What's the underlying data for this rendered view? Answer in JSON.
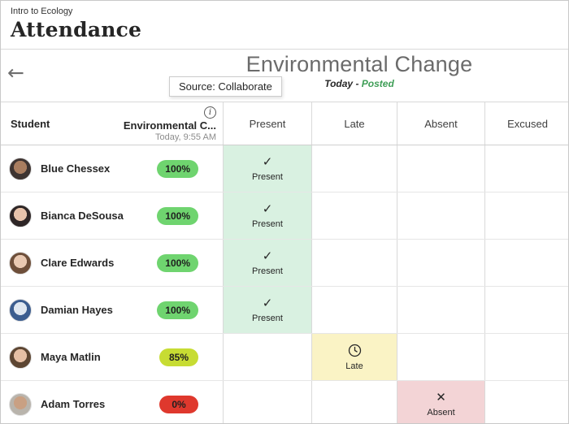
{
  "header": {
    "course": "Intro to Ecology",
    "title": "Attendance"
  },
  "toolbar": {
    "back_icon": "←",
    "meeting_title": "Environmental Change",
    "meeting_date": "Today",
    "date_status_separator": "-",
    "meeting_status": "Posted",
    "tooltip": "Source: Collaborate"
  },
  "table": {
    "columns": {
      "student": "Student",
      "meeting": "Environmental C...",
      "meeting_sub": "Today, 9:55 AM",
      "statuses": [
        "Present",
        "Late",
        "Absent",
        "Excused"
      ]
    },
    "rows": [
      {
        "name": "Blue Chessex",
        "score": "100%",
        "score_color": "#6fd46f",
        "status": "Present",
        "avatar_colors": [
          "#a97d5f",
          "#3e3431"
        ]
      },
      {
        "name": "Bianca DeSousa",
        "score": "100%",
        "score_color": "#6fd46f",
        "status": "Present",
        "avatar_colors": [
          "#e8c3ab",
          "#2e2626"
        ]
      },
      {
        "name": "Clare Edwards",
        "score": "100%",
        "score_color": "#6fd46f",
        "status": "Present",
        "avatar_colors": [
          "#e9c9b2",
          "#6e4f3a"
        ]
      },
      {
        "name": "Damian Hayes",
        "score": "100%",
        "score_color": "#6fd46f",
        "status": "Present",
        "avatar_colors": [
          "#dfe7f0",
          "#3b5d8f"
        ]
      },
      {
        "name": "Maya Matlin",
        "score": "85%",
        "score_color": "#c7dc33",
        "status": "Late",
        "avatar_colors": [
          "#e5bfa4",
          "#5d4632"
        ]
      },
      {
        "name": "Adam Torres",
        "score": "0%",
        "score_color": "#df382d",
        "status": "Absent",
        "avatar_colors": [
          "#c9a083",
          "#b9b4ac"
        ]
      }
    ]
  },
  "status_styles": {
    "Present": {
      "bg": "#d9f1e1",
      "glyph": "✓"
    },
    "Late": {
      "bg": "#faf3c5",
      "glyph": "clock-svg"
    },
    "Absent": {
      "bg": "#f3d4d6",
      "glyph": "✕"
    }
  }
}
